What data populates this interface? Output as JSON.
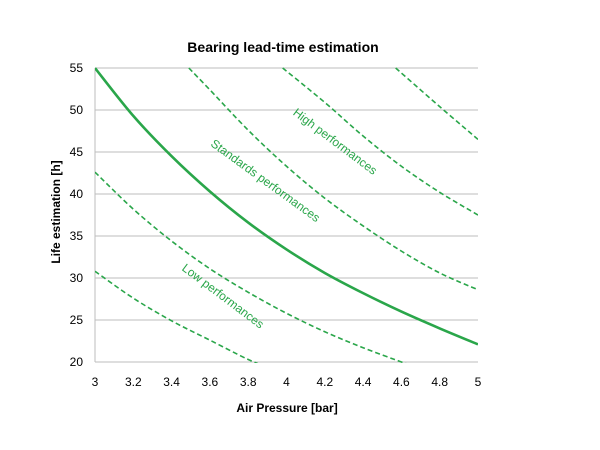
{
  "chart_data": {
    "type": "line",
    "title": "Bearing lead-time estimation",
    "xlabel": "Air Pressure [bar]",
    "ylabel": "Life estimation [h]",
    "xlim": [
      3,
      5
    ],
    "ylim": [
      20,
      55
    ],
    "xticks": [
      "3",
      "3.2",
      "3.4",
      "3.6",
      "3.8",
      "4",
      "4.2",
      "4.4",
      "4.6",
      "4.8",
      "5"
    ],
    "yticks": [
      "20",
      "25",
      "30",
      "35",
      "40",
      "45",
      "50",
      "55"
    ],
    "grid": "horizontal",
    "legend": "none",
    "line_color": "#2aa64a",
    "series": [
      {
        "style": "solid",
        "x": [
          3.0,
          3.2,
          3.4,
          3.6,
          3.8,
          4.0,
          4.2,
          4.4,
          4.6,
          4.8,
          5.0
        ],
        "y": [
          55.0,
          49.3,
          44.5,
          40.3,
          36.6,
          33.4,
          30.6,
          28.2,
          26.0,
          24.0,
          22.1
        ]
      },
      {
        "style": "dashed",
        "x": [
          3.0,
          3.2,
          3.4,
          3.6,
          3.8,
          3.95
        ],
        "y": [
          30.8,
          27.6,
          24.9,
          22.6,
          20.3,
          18.9
        ]
      },
      {
        "style": "dashed",
        "x": [
          3.0,
          3.2,
          3.4,
          3.6,
          3.8,
          4.0,
          4.2,
          4.4,
          4.6,
          4.7
        ],
        "y": [
          42.6,
          38.2,
          34.4,
          31.1,
          28.3,
          25.8,
          23.6,
          21.7,
          20.0,
          19.2
        ]
      },
      {
        "style": "dashed",
        "x": [
          3.49,
          3.6,
          3.8,
          4.0,
          4.2,
          4.4,
          4.6,
          4.8,
          5.0
        ],
        "y": [
          55.0,
          52.4,
          47.6,
          43.3,
          39.5,
          36.2,
          33.2,
          30.6,
          28.6
        ]
      },
      {
        "style": "dashed",
        "x": [
          3.98,
          4.2,
          4.4,
          4.6,
          4.8,
          5.0
        ],
        "y": [
          55.0,
          50.9,
          46.9,
          43.3,
          40.2,
          37.5
        ]
      },
      {
        "style": "dashed",
        "x": [
          4.57,
          4.8,
          5.0
        ],
        "y": [
          55.0,
          50.4,
          46.5
        ]
      }
    ],
    "annotations": [
      {
        "text": "High performances",
        "x": 4.03,
        "y": 49.5,
        "angle": 37
      },
      {
        "text": "Standards performances",
        "x": 3.6,
        "y": 45.8,
        "angle": 36
      },
      {
        "text": "Low performances",
        "x": 3.45,
        "y": 31.0,
        "angle": 37
      }
    ]
  }
}
